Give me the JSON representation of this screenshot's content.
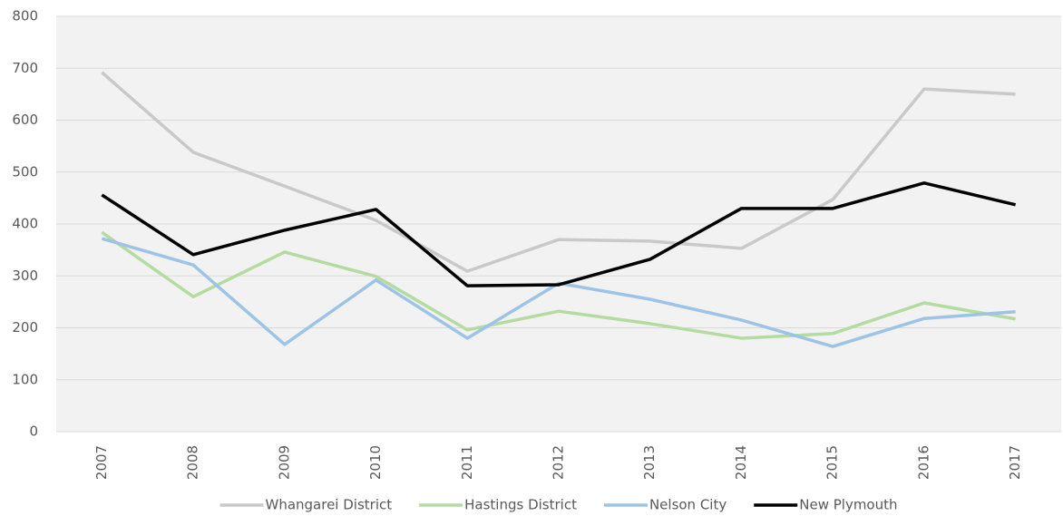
{
  "chart_data": {
    "type": "line",
    "categories": [
      "2007",
      "2008",
      "2009",
      "2010",
      "2011",
      "2012",
      "2013",
      "2014",
      "2015",
      "2016",
      "2017"
    ],
    "series": [
      {
        "name": "Whangarei District",
        "color": "#c9c9c9",
        "values": [
          692,
          538,
          473,
          407,
          309,
          370,
          367,
          353,
          447,
          660,
          650
        ]
      },
      {
        "name": "Hastings District",
        "color": "#b4dba0",
        "values": [
          384,
          260,
          346,
          299,
          196,
          232,
          208,
          180,
          189,
          248,
          217
        ]
      },
      {
        "name": "Nelson City",
        "color": "#9dc3e6",
        "values": [
          372,
          321,
          168,
          292,
          180,
          286,
          255,
          215,
          164,
          218,
          231
        ]
      },
      {
        "name": "New Plymouth",
        "color": "#000000",
        "values": [
          456,
          341,
          388,
          428,
          281,
          283,
          332,
          430,
          430,
          479,
          437
        ]
      }
    ],
    "ylim": [
      0,
      800
    ],
    "yticks": [
      0,
      100,
      200,
      300,
      400,
      500,
      600,
      700,
      800
    ],
    "grid": true,
    "legend": "bottom"
  }
}
